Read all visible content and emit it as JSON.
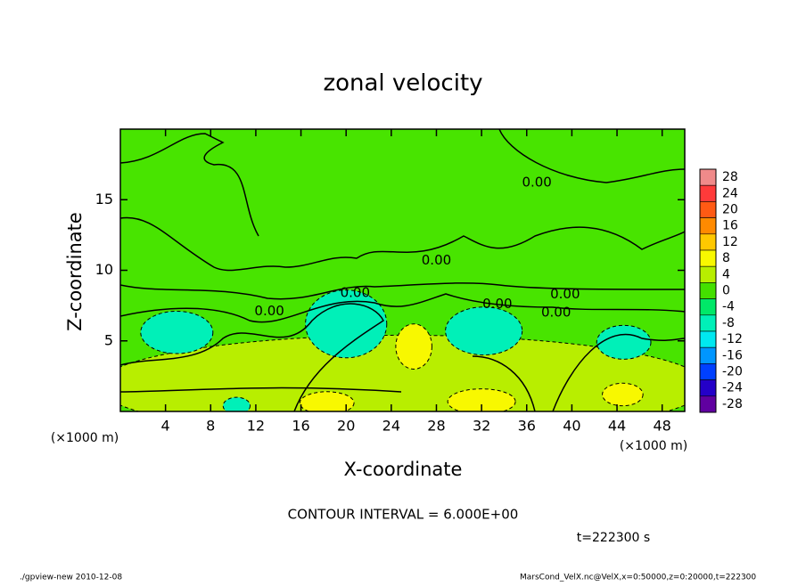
{
  "chart_data": {
    "type": "contour",
    "title": "zonal velocity",
    "xlabel": "X-coordinate",
    "ylabel": "Z-coordinate",
    "x_unit_label": "(×1000 m)",
    "xlim": [
      0,
      50
    ],
    "ylim": [
      0,
      20
    ],
    "xticks": [
      4,
      8,
      12,
      16,
      20,
      24,
      28,
      32,
      36,
      40,
      44,
      48
    ],
    "yticks": [
      5,
      10,
      15
    ],
    "field_blobs": [
      {
        "x": 25,
        "z": 1.8,
        "rx": 27,
        "rz": 3.6,
        "value": 4
      },
      {
        "x": 5,
        "z": 5.6,
        "rx": 3.2,
        "rz": 1.5,
        "value": -8
      },
      {
        "x": 20,
        "z": 6.2,
        "rx": 3.6,
        "rz": 2.4,
        "value": -8
      },
      {
        "x": 32.2,
        "z": 5.7,
        "rx": 3.4,
        "rz": 1.7,
        "value": -8
      },
      {
        "x": 44.6,
        "z": 4.9,
        "rx": 2.4,
        "rz": 1.2,
        "value": -8
      },
      {
        "x": 10.3,
        "z": 0.4,
        "rx": 1.2,
        "rz": 0.6,
        "value": -8
      },
      {
        "x": 32,
        "z": 0.7,
        "rx": 3,
        "rz": 0.9,
        "value": 8
      },
      {
        "x": 18.3,
        "z": 0.6,
        "rx": 2.4,
        "rz": 0.8,
        "value": 8
      },
      {
        "x": 26,
        "z": 4.6,
        "rx": 1.6,
        "rz": 1.6,
        "value": 8
      },
      {
        "x": 44.5,
        "z": 1.2,
        "rx": 1.8,
        "rz": 0.8,
        "value": 8
      }
    ],
    "contour_labels": [
      {
        "text": "0.00",
        "x": 36.9,
        "z": 16.2
      },
      {
        "text": "0.00",
        "x": 28,
        "z": 10.7
      },
      {
        "text": "0.00",
        "x": 20.8,
        "z": 8.4
      },
      {
        "text": "0.00",
        "x": 13.2,
        "z": 7.1
      },
      {
        "text": "0.00",
        "x": 39.4,
        "z": 8.3
      },
      {
        "text": "0.00",
        "x": 38.6,
        "z": 7
      },
      {
        "text": "0.00",
        "x": 33.4,
        "z": 7.6
      }
    ],
    "colorbar": {
      "levels": [
        28,
        24,
        20,
        16,
        12,
        8,
        4,
        0,
        -4,
        -8,
        -12,
        -16,
        -20,
        -24,
        -28
      ],
      "colors": [
        "#f08a8a",
        "#ff3a3a",
        "#ff5a14",
        "#ff8a00",
        "#ffc800",
        "#f8f800",
        "#b8ee00",
        "#44e000",
        "#00e868",
        "#00f0b8",
        "#00e8f0",
        "#0096ff",
        "#0040ff",
        "#2400c8",
        "#6000a0"
      ]
    },
    "annotations": [
      "CONTOUR INTERVAL = 6.000E+00",
      "t=222300 s",
      "./gpview-new  2010-12-08",
      "MarsCond_VelX.nc@VelX,x=0:50000,z=0:20000,t=222300"
    ]
  }
}
